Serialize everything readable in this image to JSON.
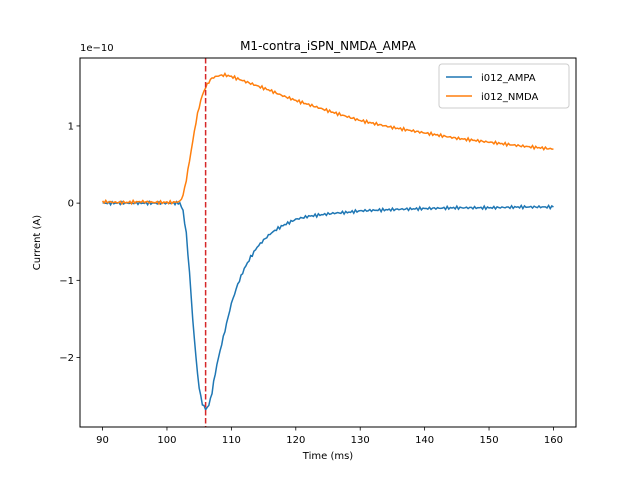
{
  "chart_data": {
    "type": "line",
    "title": "M1-contra_iSPN_NMDA_AMPA",
    "xlabel": "Time (ms)",
    "ylabel": "Current (A)",
    "y_offset_text": "1e−10",
    "y_scale": 1e-10,
    "xlim": [
      86.5,
      163.5
    ],
    "ylim": [
      -2.9,
      1.88
    ],
    "xticks": [
      90,
      100,
      110,
      120,
      130,
      140,
      150,
      160
    ],
    "yticks": [
      -2,
      -1,
      0,
      1
    ],
    "ytick_labels": [
      "−2",
      "−1",
      "0",
      "1"
    ],
    "legend_position": "top-right",
    "grid": false,
    "vline": {
      "x": 106.0,
      "color": "#d62728",
      "style": "dashed"
    },
    "series": [
      {
        "name": "i012_AMPA",
        "color": "#1f77b4",
        "x": [
          90,
          92,
          94,
          96,
          98,
          100,
          101,
          102,
          102.5,
          103,
          103.5,
          104,
          104.5,
          105,
          105.5,
          106,
          106.5,
          107,
          107.5,
          108,
          109,
          110,
          111,
          112,
          113,
          114,
          115,
          116,
          117,
          118,
          119,
          120,
          122,
          124,
          126,
          128,
          130,
          133,
          136,
          140,
          145,
          150,
          155,
          160
        ],
        "y": [
          0,
          0,
          0,
          0,
          0,
          0,
          0,
          0,
          -0.1,
          -0.4,
          -0.9,
          -1.5,
          -2.0,
          -2.4,
          -2.6,
          -2.67,
          -2.62,
          -2.45,
          -2.2,
          -2.0,
          -1.65,
          -1.3,
          -1.05,
          -0.85,
          -0.7,
          -0.57,
          -0.48,
          -0.4,
          -0.34,
          -0.29,
          -0.25,
          -0.21,
          -0.17,
          -0.15,
          -0.13,
          -0.12,
          -0.1,
          -0.09,
          -0.08,
          -0.07,
          -0.06,
          -0.06,
          -0.05,
          -0.05
        ]
      },
      {
        "name": "i012_NMDA",
        "color": "#ff7f0e",
        "x": [
          90,
          92,
          94,
          96,
          98,
          100,
          101,
          102,
          102.5,
          103,
          103.5,
          104,
          104.5,
          105,
          105.5,
          106,
          106.5,
          107,
          108,
          109,
          110,
          112,
          114,
          116,
          118,
          120,
          123,
          126,
          130,
          135,
          140,
          145,
          150,
          155,
          160
        ],
        "y": [
          0.02,
          0.01,
          0.01,
          0.02,
          0.01,
          0.01,
          0.01,
          0.02,
          0.1,
          0.3,
          0.55,
          0.8,
          1.05,
          1.25,
          1.4,
          1.5,
          1.57,
          1.62,
          1.65,
          1.66,
          1.64,
          1.58,
          1.52,
          1.46,
          1.39,
          1.33,
          1.25,
          1.17,
          1.07,
          0.98,
          0.91,
          0.84,
          0.79,
          0.74,
          0.7
        ]
      }
    ]
  }
}
